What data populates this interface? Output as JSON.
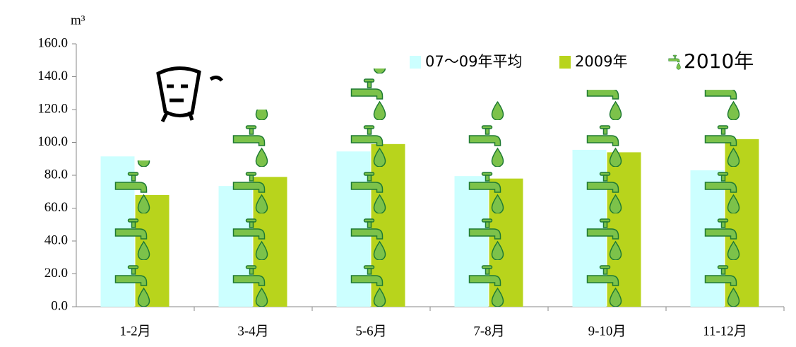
{
  "chart_data": {
    "type": "bar",
    "unit_label": "m³",
    "categories": [
      "1-2月",
      "3-4月",
      "5-6月",
      "7-8月",
      "9-10月",
      "11-12月"
    ],
    "series": [
      {
        "name": "07～09年平均",
        "color": "#ccffff",
        "values": [
          91.5,
          73.5,
          94.5,
          79.5,
          95.5,
          83.0
        ]
      },
      {
        "name": "2009年",
        "color": "#b8d41c",
        "values": [
          68.0,
          79.0,
          99.0,
          78.0,
          94.0,
          102.0
        ]
      },
      {
        "name": "2010年",
        "color": "#7cc24a",
        "values": [
          89.0,
          120.0,
          145.0,
          125.0,
          132.0,
          132.0
        ]
      }
    ],
    "ylim": [
      0,
      160
    ],
    "yticks": [
      {
        "value": 0,
        "label": "0.0"
      },
      {
        "value": 20,
        "label": "20.0"
      },
      {
        "value": 40,
        "label": "40.0"
      },
      {
        "value": 60,
        "label": "60.0"
      },
      {
        "value": 80,
        "label": "80.0"
      },
      {
        "value": 100,
        "label": "100.0"
      },
      {
        "value": 120,
        "label": "120.0"
      },
      {
        "value": 140,
        "label": "140.0"
      },
      {
        "value": 160,
        "label": "160.0"
      }
    ]
  }
}
